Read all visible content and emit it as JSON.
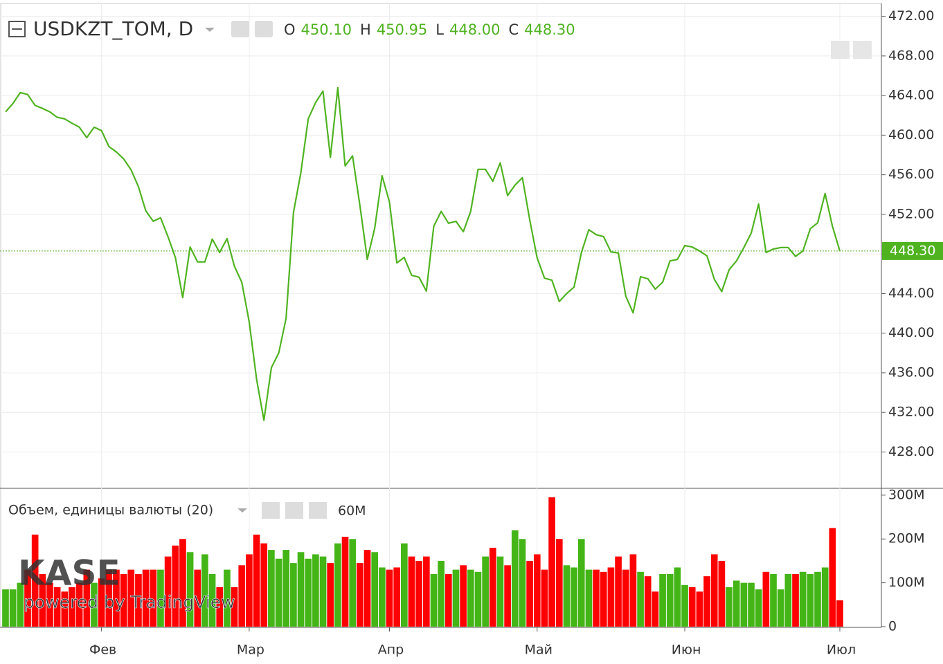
{
  "chart_data": {
    "type": "line",
    "title": "USDKZT_TOM, D",
    "ohlc_labels": [
      "O",
      "H",
      "L",
      "C"
    ],
    "ohlc_values": [
      450.1,
      450.95,
      448.0,
      448.3
    ],
    "ohlc_value_labels": [
      "450.10",
      "450.95",
      "448.00",
      "448.30"
    ],
    "color": "#4fb320",
    "categories": [
      null,
      null,
      null,
      null,
      null,
      null,
      null,
      null,
      null,
      null,
      null,
      null,
      null,
      "Фев",
      null,
      null,
      null,
      null,
      null,
      null,
      null,
      null,
      null,
      null,
      null,
      null,
      null,
      null,
      null,
      null,
      null,
      null,
      null,
      "Мар",
      null,
      null,
      null,
      null,
      null,
      null,
      null,
      null,
      null,
      null,
      null,
      null,
      null,
      null,
      null,
      null,
      null,
      null,
      "Апр",
      null,
      null,
      null,
      null,
      null,
      null,
      null,
      null,
      null,
      null,
      null,
      null,
      null,
      null,
      null,
      null,
      null,
      null,
      null,
      "Май",
      null,
      null,
      null,
      null,
      null,
      null,
      null,
      null,
      null,
      null,
      null,
      null,
      null,
      null,
      null,
      null,
      null,
      null,
      null,
      "Июн",
      null,
      null,
      null,
      null,
      null,
      null,
      null,
      null,
      null,
      null,
      null,
      null,
      null,
      null,
      null,
      null,
      null,
      null,
      null,
      null,
      "Июл"
    ],
    "values": [
      462.35,
      463.2,
      464.3,
      464.1,
      463.0,
      462.7,
      462.35,
      461.8,
      461.65,
      461.2,
      460.8,
      459.75,
      460.8,
      460.45,
      458.85,
      458.3,
      457.6,
      456.5,
      454.8,
      452.35,
      451.3,
      451.65,
      449.75,
      447.65,
      443.6,
      448.7,
      447.2,
      447.2,
      449.5,
      448.15,
      449.55,
      446.75,
      445.15,
      441.15,
      435.35,
      431.2,
      436.5,
      438.0,
      441.5,
      452.2,
      456.2,
      461.65,
      463.3,
      464.45,
      457.75,
      464.8,
      456.9,
      457.9,
      452.85,
      447.45,
      450.6,
      455.9,
      453.25,
      447.1,
      447.65,
      445.85,
      445.65,
      444.25,
      450.8,
      452.3,
      451.1,
      451.3,
      450.25,
      452.3,
      456.55,
      456.55,
      455.35,
      457.2,
      453.9,
      454.95,
      455.7,
      451.45,
      447.6,
      445.55,
      445.35,
      443.2,
      444.0,
      444.65,
      448.15,
      450.45,
      449.95,
      449.75,
      448.2,
      448.1,
      443.75,
      442.05,
      445.7,
      445.5,
      444.45,
      445.15,
      447.3,
      447.45,
      448.85,
      448.7,
      448.3,
      447.8,
      445.45,
      444.2,
      446.4,
      447.3,
      448.65,
      450.1,
      453.05,
      448.15,
      448.5,
      448.65,
      448.65,
      447.75,
      448.3,
      450.55,
      451.15,
      454.1,
      450.8,
      448.3
    ],
    "ylim": [
      424.4,
      473.3
    ],
    "yticks": [
      {
        "value": 428,
        "label": "428.00"
      },
      {
        "value": 432,
        "label": "432.00"
      },
      {
        "value": 436,
        "label": "436.00"
      },
      {
        "value": 440,
        "label": "440.00"
      },
      {
        "value": 444,
        "label": "444.00"
      },
      {
        "value": 448,
        "label": "448.00"
      },
      {
        "value": 452,
        "label": "452.00"
      },
      {
        "value": 456,
        "label": "456.00"
      },
      {
        "value": 460,
        "label": "460.00"
      },
      {
        "value": 464,
        "label": "464.00"
      },
      {
        "value": 468,
        "label": "468.00"
      },
      {
        "value": 472,
        "label": "472.00"
      }
    ],
    "grid": true,
    "volume": {
      "type": "bar",
      "title": "Объем, единицы валюты (20)",
      "legend_value_label": "60M",
      "up_color": "#44b516",
      "down_color": "#ff0000",
      "values": [
        85,
        85,
        100,
        130,
        210,
        120,
        100,
        90,
        80,
        90,
        100,
        130,
        100,
        110,
        130,
        130,
        120,
        130,
        120,
        130,
        130,
        130,
        160,
        185,
        200,
        170,
        130,
        165,
        120,
        90,
        130,
        90,
        140,
        165,
        210,
        190,
        175,
        155,
        175,
        145,
        170,
        155,
        165,
        160,
        145,
        190,
        205,
        200,
        145,
        175,
        170,
        135,
        130,
        135,
        190,
        160,
        150,
        160,
        120,
        150,
        120,
        130,
        140,
        130,
        125,
        160,
        180,
        160,
        140,
        220,
        200,
        150,
        165,
        130,
        295,
        200,
        140,
        135,
        200,
        130,
        130,
        125,
        135,
        160,
        130,
        165,
        125,
        115,
        80,
        120,
        120,
        135,
        95,
        90,
        80,
        115,
        165,
        150,
        90,
        105,
        100,
        100,
        85,
        125,
        120,
        85,
        120,
        120,
        125,
        120,
        125,
        135,
        225,
        60
      ],
      "ylim": [
        0,
        314
      ],
      "yticks": [
        0,
        {
          "value": 100,
          "label": "100M"
        },
        {
          "value": 200,
          "label": "200M"
        },
        {
          "value": 300,
          "label": "300M"
        }
      ]
    },
    "watermark": {
      "logo": "KASE",
      "text": "powered by TradingView"
    }
  }
}
